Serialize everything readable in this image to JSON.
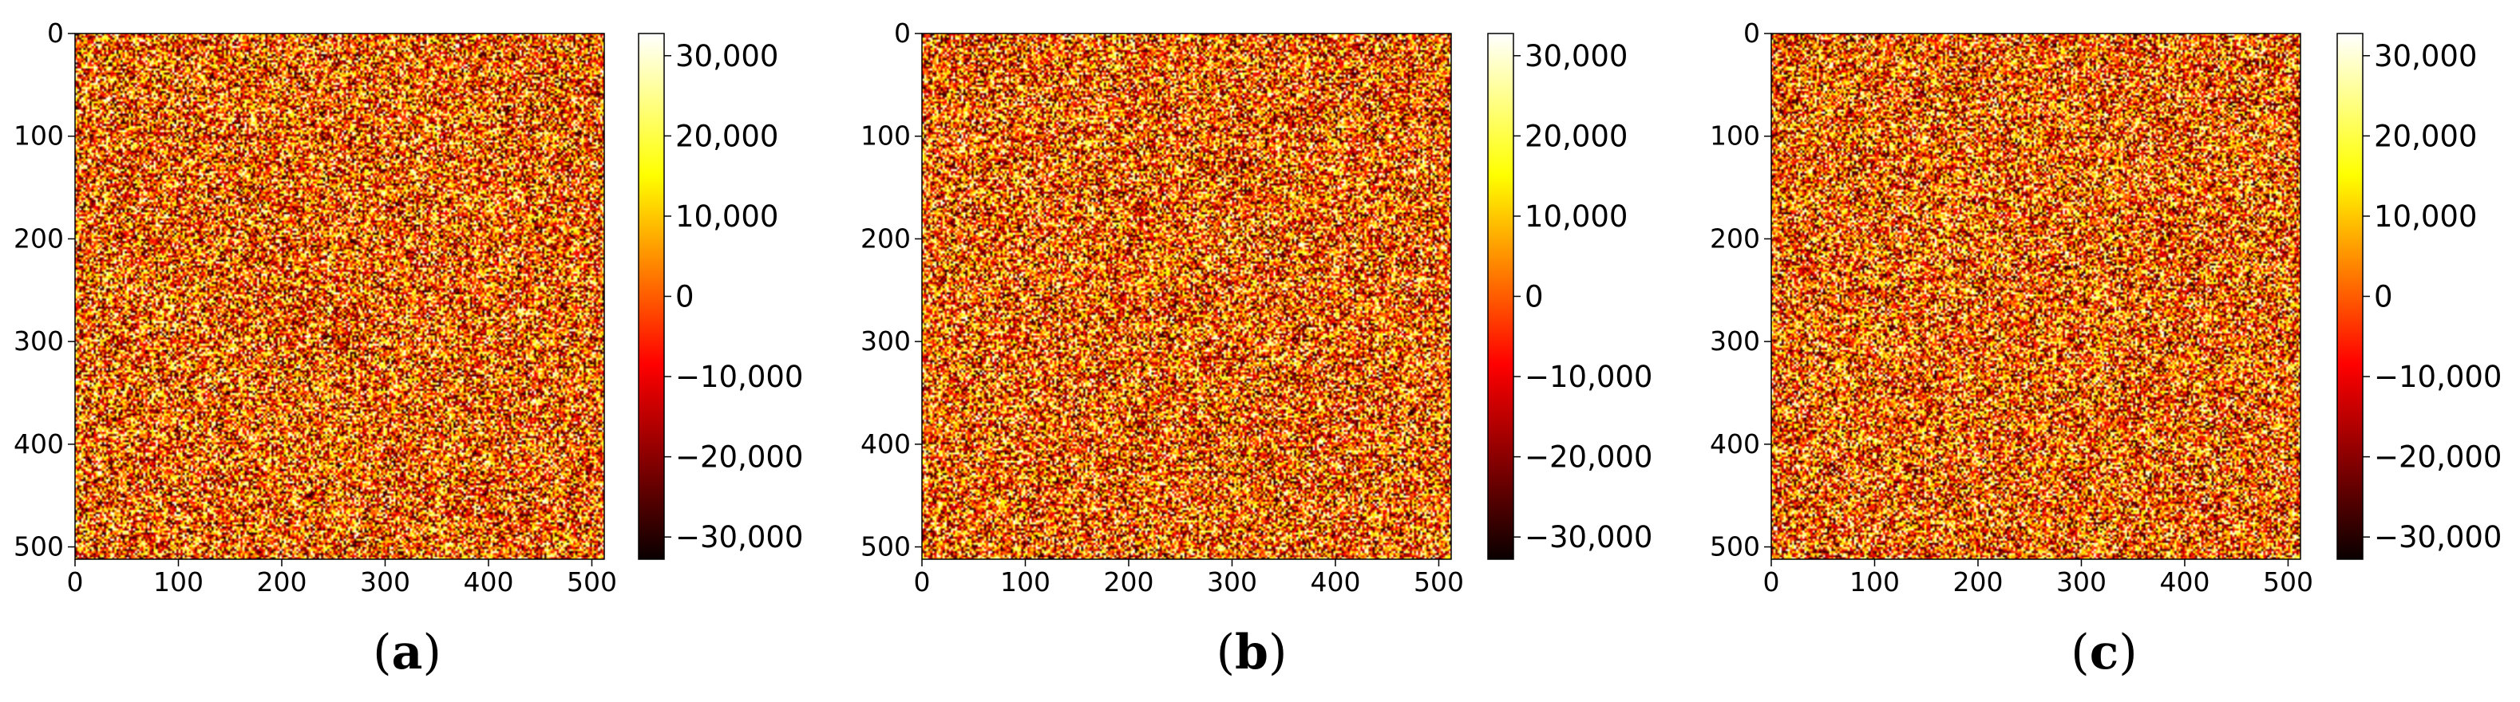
{
  "chart_data": [
    {
      "type": "heatmap",
      "caption_open": "(",
      "caption_letter": "a",
      "caption_close": ")",
      "colormap": "hot",
      "x_ticks": [
        "0",
        "100",
        "200",
        "300",
        "400",
        "500"
      ],
      "y_ticks": [
        "0",
        "100",
        "200",
        "300",
        "400",
        "500"
      ],
      "xlim": [
        0,
        512
      ],
      "ylim": [
        512,
        0
      ],
      "colorbar_ticks": [
        "30,000",
        "20,000",
        "10,000",
        "0",
        "−10,000",
        "−20,000",
        "−30,000"
      ],
      "colorbar_values": [
        30000,
        20000,
        10000,
        0,
        -10000,
        -20000,
        -30000
      ],
      "colorbar_range": [
        -32768,
        32767
      ]
    },
    {
      "type": "heatmap",
      "caption_open": "(",
      "caption_letter": "b",
      "caption_close": ")",
      "colormap": "hot",
      "x_ticks": [
        "0",
        "100",
        "200",
        "300",
        "400",
        "500"
      ],
      "y_ticks": [
        "0",
        "100",
        "200",
        "300",
        "400",
        "500"
      ],
      "xlim": [
        0,
        512
      ],
      "ylim": [
        512,
        0
      ],
      "colorbar_ticks": [
        "30,000",
        "20,000",
        "10,000",
        "0",
        "−10,000",
        "−20,000",
        "−30,000"
      ],
      "colorbar_values": [
        30000,
        20000,
        10000,
        0,
        -10000,
        -20000,
        -30000
      ],
      "colorbar_range": [
        -32768,
        32767
      ]
    },
    {
      "type": "heatmap",
      "caption_open": "(",
      "caption_letter": "c",
      "caption_close": ")",
      "colormap": "hot",
      "x_ticks": [
        "0",
        "100",
        "200",
        "300",
        "400",
        "500"
      ],
      "y_ticks": [
        "0",
        "100",
        "200",
        "300",
        "400",
        "500"
      ],
      "xlim": [
        0,
        512
      ],
      "ylim": [
        512,
        0
      ],
      "colorbar_ticks": [
        "30,000",
        "20,000",
        "10,000",
        "0",
        "−10,000",
        "−20,000",
        "−30,000"
      ],
      "colorbar_values": [
        30000,
        20000,
        10000,
        0,
        -10000,
        -20000,
        -30000
      ],
      "colorbar_range": [
        -32768,
        32767
      ]
    }
  ]
}
